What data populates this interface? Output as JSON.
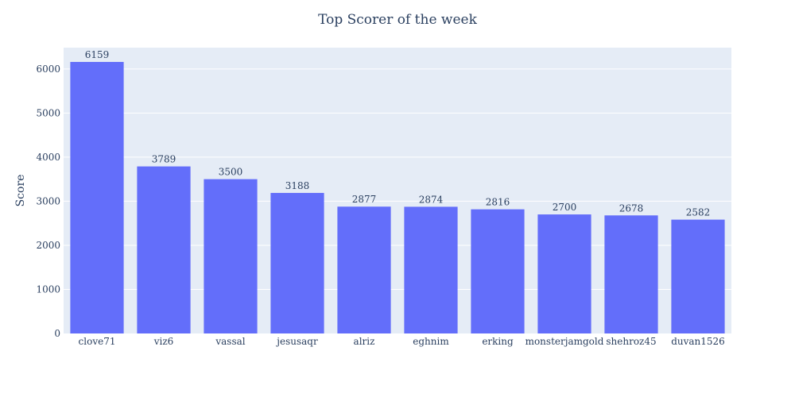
{
  "chart_data": {
    "type": "bar",
    "title": "Top Scorer of the week",
    "xlabel": "",
    "ylabel": "Score",
    "categories": [
      "clove71",
      "viz6",
      "vassal",
      "jesusaqr",
      "alriz",
      "eghnim",
      "erking",
      "monsterjamgold",
      "shehroz45",
      "duvan1526"
    ],
    "values": [
      6159,
      3789,
      3500,
      3188,
      2877,
      2874,
      2816,
      2700,
      2678,
      2582
    ],
    "ylim": [
      0,
      6483
    ],
    "yticks": [
      0,
      1000,
      2000,
      3000,
      4000,
      5000,
      6000
    ],
    "grid": true,
    "legend": "none",
    "colors": {
      "bar": "#636efa",
      "plot_bg": "#e5ecf6",
      "grid": "#ffffff",
      "text": "#2a3f5f"
    }
  }
}
